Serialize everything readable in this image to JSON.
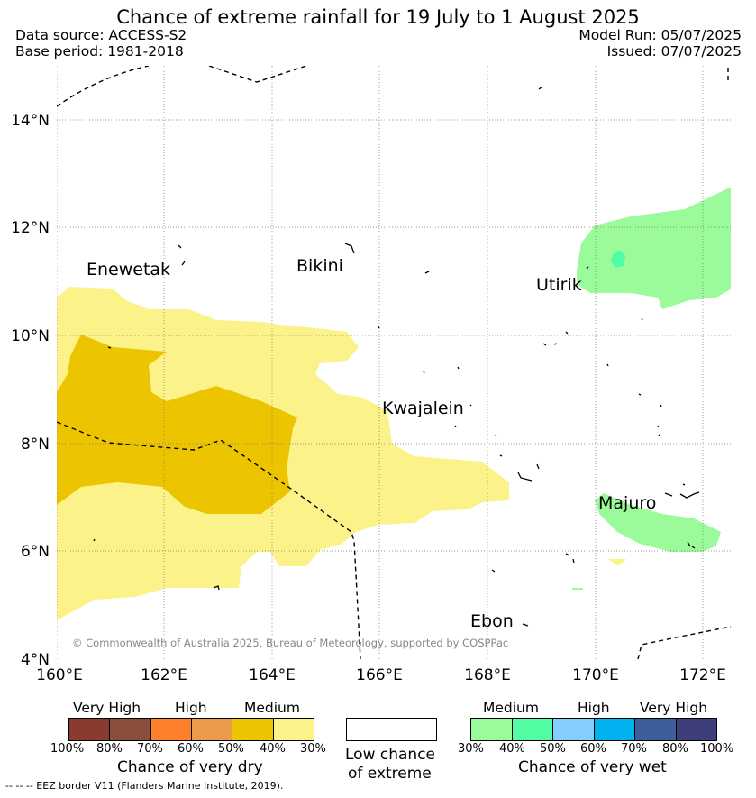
{
  "title": "Chance of extreme rainfall for 19 July to 1 August 2025",
  "meta": {
    "data_source": "Data source: ACCESS-S2",
    "base_period": "Base period: 1981-2018",
    "model_run": "Model Run: 05/07/2025",
    "issued": "Issued: 07/07/2025"
  },
  "map": {
    "lat_labels": [
      "14°N",
      "12°N",
      "10°N",
      "8°N",
      "6°N",
      "4°N"
    ],
    "lon_labels": [
      "160°E",
      "162°E",
      "164°E",
      "166°E",
      "168°E",
      "170°E",
      "172°E"
    ],
    "places": [
      "Enewetak",
      "Bikini",
      "Utirik",
      "Kwajalein",
      "Majuro",
      "Ebon"
    ],
    "copyright": "© Commonwealth of Australia 2025, Bureau of Meteorology, supported by COSPPac"
  },
  "legend": {
    "dry": {
      "groups": [
        "Very High",
        "High",
        "Medium"
      ],
      "colors": [
        "#8b3a2f",
        "#8a4f3c",
        "#ff7f2a",
        "#eb9b4c",
        "#ecc500",
        "#fbf38a"
      ],
      "ticks": [
        "100%",
        "80%",
        "70%",
        "60%",
        "50%",
        "40%",
        "30%"
      ],
      "caption": "Chance of very dry"
    },
    "none": {
      "caption_line1": "Low chance",
      "caption_line2": "of extreme"
    },
    "wet": {
      "groups": [
        "Medium",
        "High",
        "Very High"
      ],
      "colors": [
        "#9bfa99",
        "#52fca3",
        "#85cdfd",
        "#00b1f0",
        "#3c5e9b",
        "#3d3e7a"
      ],
      "ticks": [
        "30%",
        "40%",
        "50%",
        "60%",
        "70%",
        "80%",
        "100%"
      ],
      "caption": "Chance of very wet"
    }
  },
  "footnote": "-- -- -- EEZ border V11 (Flanders Marine Institute, 2019)."
}
